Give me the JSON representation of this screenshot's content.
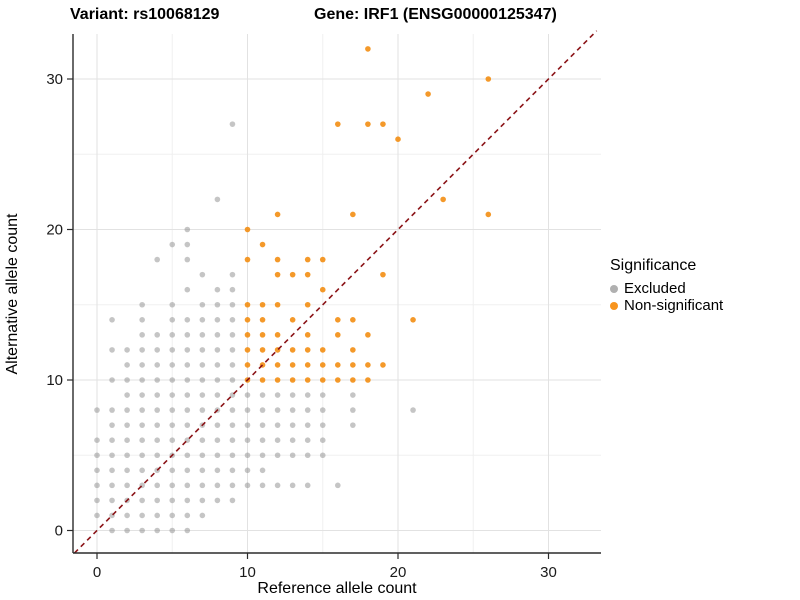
{
  "titles": {
    "variant": "Variant: rs10068129",
    "gene": "Gene: IRF1 (ENSG00000125347)"
  },
  "chart_data": {
    "type": "scatter",
    "xlabel": "Reference allele count",
    "ylabel": "Alternative allele count",
    "x_ticks": [
      0,
      10,
      20,
      30
    ],
    "y_ticks": [
      0,
      10,
      20,
      30
    ],
    "minor_ticks": [
      5,
      15,
      25
    ],
    "xlim": [
      -1.6,
      33.5
    ],
    "ylim": [
      -1.5,
      33
    ],
    "grid": "major and minor, light gray, white background",
    "identity_line": {
      "type": "y=x",
      "style": "dashed",
      "color": "#8B1418"
    },
    "legend": {
      "title": "Significance",
      "position": "right",
      "entries": [
        {
          "label": "Excluded",
          "color": "#b0b0b0"
        },
        {
          "label": "Non-significant",
          "color": "#f7941e"
        }
      ]
    },
    "series": [
      {
        "name": "Excluded",
        "color": "#8c8c8c",
        "points": [
          [
            1,
            0
          ],
          [
            2,
            0
          ],
          [
            3,
            0
          ],
          [
            4,
            0
          ],
          [
            5,
            0
          ],
          [
            6,
            0
          ],
          [
            0,
            1
          ],
          [
            1,
            1
          ],
          [
            2,
            1
          ],
          [
            3,
            1
          ],
          [
            4,
            1
          ],
          [
            5,
            1
          ],
          [
            6,
            1
          ],
          [
            7,
            1
          ],
          [
            0,
            2
          ],
          [
            1,
            2
          ],
          [
            2,
            2
          ],
          [
            3,
            2
          ],
          [
            4,
            2
          ],
          [
            5,
            2
          ],
          [
            6,
            2
          ],
          [
            7,
            2
          ],
          [
            8,
            2
          ],
          [
            9,
            2
          ],
          [
            0,
            3
          ],
          [
            1,
            3
          ],
          [
            2,
            3
          ],
          [
            3,
            3
          ],
          [
            4,
            3
          ],
          [
            5,
            3
          ],
          [
            6,
            3
          ],
          [
            7,
            3
          ],
          [
            8,
            3
          ],
          [
            9,
            3
          ],
          [
            10,
            3
          ],
          [
            11,
            3
          ],
          [
            12,
            3
          ],
          [
            13,
            3
          ],
          [
            14,
            3
          ],
          [
            16,
            3
          ],
          [
            0,
            4
          ],
          [
            1,
            4
          ],
          [
            2,
            4
          ],
          [
            3,
            4
          ],
          [
            4,
            4
          ],
          [
            5,
            4
          ],
          [
            6,
            4
          ],
          [
            7,
            4
          ],
          [
            8,
            4
          ],
          [
            9,
            4
          ],
          [
            10,
            4
          ],
          [
            11,
            4
          ],
          [
            0,
            5
          ],
          [
            1,
            5
          ],
          [
            2,
            5
          ],
          [
            3,
            5
          ],
          [
            4,
            5
          ],
          [
            5,
            5
          ],
          [
            6,
            5
          ],
          [
            7,
            5
          ],
          [
            8,
            5
          ],
          [
            9,
            5
          ],
          [
            10,
            5
          ],
          [
            11,
            5
          ],
          [
            12,
            5
          ],
          [
            13,
            5
          ],
          [
            14,
            5
          ],
          [
            15,
            5
          ],
          [
            0,
            6
          ],
          [
            1,
            6
          ],
          [
            2,
            6
          ],
          [
            3,
            6
          ],
          [
            4,
            6
          ],
          [
            5,
            6
          ],
          [
            6,
            6
          ],
          [
            7,
            6
          ],
          [
            8,
            6
          ],
          [
            9,
            6
          ],
          [
            10,
            6
          ],
          [
            11,
            6
          ],
          [
            12,
            6
          ],
          [
            13,
            6
          ],
          [
            14,
            6
          ],
          [
            15,
            6
          ],
          [
            1,
            7
          ],
          [
            2,
            7
          ],
          [
            3,
            7
          ],
          [
            4,
            7
          ],
          [
            5,
            7
          ],
          [
            6,
            7
          ],
          [
            7,
            7
          ],
          [
            8,
            7
          ],
          [
            9,
            7
          ],
          [
            10,
            7
          ],
          [
            11,
            7
          ],
          [
            12,
            7
          ],
          [
            13,
            7
          ],
          [
            14,
            7
          ],
          [
            15,
            7
          ],
          [
            17,
            7
          ],
          [
            0,
            8
          ],
          [
            1,
            8
          ],
          [
            2,
            8
          ],
          [
            3,
            8
          ],
          [
            4,
            8
          ],
          [
            5,
            8
          ],
          [
            6,
            8
          ],
          [
            7,
            8
          ],
          [
            8,
            8
          ],
          [
            9,
            8
          ],
          [
            10,
            8
          ],
          [
            11,
            8
          ],
          [
            12,
            8
          ],
          [
            13,
            8
          ],
          [
            14,
            8
          ],
          [
            15,
            8
          ],
          [
            17,
            8
          ],
          [
            21,
            8
          ],
          [
            2,
            9
          ],
          [
            3,
            9
          ],
          [
            4,
            9
          ],
          [
            5,
            9
          ],
          [
            6,
            9
          ],
          [
            7,
            9
          ],
          [
            8,
            9
          ],
          [
            9,
            9
          ],
          [
            10,
            9
          ],
          [
            11,
            9
          ],
          [
            12,
            9
          ],
          [
            13,
            9
          ],
          [
            14,
            9
          ],
          [
            15,
            9
          ],
          [
            17,
            9
          ],
          [
            1,
            10
          ],
          [
            2,
            10
          ],
          [
            3,
            10
          ],
          [
            4,
            10
          ],
          [
            5,
            10
          ],
          [
            6,
            10
          ],
          [
            7,
            10
          ],
          [
            8,
            10
          ],
          [
            9,
            10
          ],
          [
            2,
            11
          ],
          [
            3,
            11
          ],
          [
            4,
            11
          ],
          [
            5,
            11
          ],
          [
            6,
            11
          ],
          [
            7,
            11
          ],
          [
            8,
            11
          ],
          [
            9,
            11
          ],
          [
            1,
            12
          ],
          [
            2,
            12
          ],
          [
            3,
            12
          ],
          [
            4,
            12
          ],
          [
            5,
            12
          ],
          [
            6,
            12
          ],
          [
            7,
            12
          ],
          [
            8,
            12
          ],
          [
            9,
            12
          ],
          [
            3,
            13
          ],
          [
            4,
            13
          ],
          [
            5,
            13
          ],
          [
            6,
            13
          ],
          [
            7,
            13
          ],
          [
            8,
            13
          ],
          [
            9,
            13
          ],
          [
            1,
            14
          ],
          [
            3,
            14
          ],
          [
            5,
            14
          ],
          [
            6,
            14
          ],
          [
            7,
            14
          ],
          [
            8,
            14
          ],
          [
            9,
            14
          ],
          [
            3,
            15
          ],
          [
            5,
            15
          ],
          [
            7,
            15
          ],
          [
            8,
            15
          ],
          [
            9,
            15
          ],
          [
            6,
            16
          ],
          [
            8,
            16
          ],
          [
            9,
            16
          ],
          [
            7,
            17
          ],
          [
            9,
            17
          ],
          [
            4,
            18
          ],
          [
            6,
            18
          ],
          [
            5,
            19
          ],
          [
            6,
            19
          ],
          [
            6,
            20
          ],
          [
            8,
            22
          ],
          [
            9,
            27
          ]
        ]
      },
      {
        "name": "Non-significant",
        "color": "#f28705",
        "points": [
          [
            10,
            10
          ],
          [
            11,
            10
          ],
          [
            12,
            10
          ],
          [
            13,
            10
          ],
          [
            14,
            10
          ],
          [
            15,
            10
          ],
          [
            16,
            10
          ],
          [
            17,
            10
          ],
          [
            18,
            10
          ],
          [
            10,
            11
          ],
          [
            11,
            11
          ],
          [
            12,
            11
          ],
          [
            13,
            11
          ],
          [
            14,
            11
          ],
          [
            15,
            11
          ],
          [
            16,
            11
          ],
          [
            17,
            11
          ],
          [
            18,
            11
          ],
          [
            19,
            11
          ],
          [
            10,
            12
          ],
          [
            11,
            12
          ],
          [
            12,
            12
          ],
          [
            13,
            12
          ],
          [
            14,
            12
          ],
          [
            15,
            12
          ],
          [
            17,
            12
          ],
          [
            10,
            13
          ],
          [
            11,
            13
          ],
          [
            12,
            13
          ],
          [
            14,
            13
          ],
          [
            16,
            13
          ],
          [
            18,
            13
          ],
          [
            10,
            14
          ],
          [
            11,
            14
          ],
          [
            13,
            14
          ],
          [
            16,
            14
          ],
          [
            17,
            14
          ],
          [
            21,
            14
          ],
          [
            10,
            15
          ],
          [
            11,
            15
          ],
          [
            12,
            15
          ],
          [
            14,
            15
          ],
          [
            15,
            16
          ],
          [
            12,
            17
          ],
          [
            13,
            17
          ],
          [
            14,
            17
          ],
          [
            19,
            17
          ],
          [
            10,
            18
          ],
          [
            12,
            18
          ],
          [
            14,
            18
          ],
          [
            15,
            18
          ],
          [
            11,
            19
          ],
          [
            10,
            20
          ],
          [
            12,
            21
          ],
          [
            17,
            21
          ],
          [
            26,
            21
          ],
          [
            23,
            22
          ],
          [
            20,
            26
          ],
          [
            16,
            27
          ],
          [
            18,
            27
          ],
          [
            19,
            27
          ],
          [
            22,
            29
          ],
          [
            26,
            30
          ],
          [
            18,
            32
          ]
        ]
      }
    ]
  }
}
